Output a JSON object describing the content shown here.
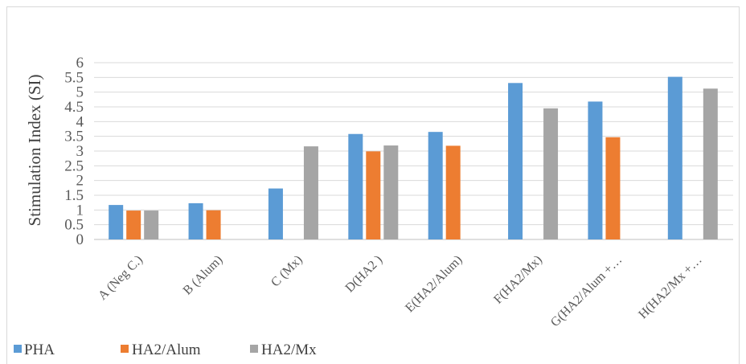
{
  "chart_data": {
    "type": "bar",
    "title": "",
    "xlabel": "",
    "ylabel": "Stimulation Index (SI)",
    "ylim": [
      0,
      6
    ],
    "yticks": [
      "0",
      "0.5",
      "1",
      "1.5",
      "2",
      "2.5",
      "3",
      "3.5",
      "4",
      "4.5",
      "5",
      "5.5",
      "6"
    ],
    "grid": true,
    "legend_position": "bottom-left",
    "categories": [
      "A (Neg C.)",
      "B (Alum)",
      "C (Mx)",
      "D(HA2 )",
      "E(HA2/Alum)",
      "F(HA2/Mx)",
      "G(HA2/Alum +…",
      "H(HA2/Mx +…"
    ],
    "series": [
      {
        "name": "PHA",
        "color": "#5b9bd5",
        "values": [
          1.17,
          1.23,
          1.73,
          3.58,
          3.65,
          5.31,
          4.68,
          5.52
        ]
      },
      {
        "name": "HA2/Alum",
        "color": "#ed7d31",
        "values": [
          0.98,
          0.99,
          null,
          2.99,
          3.18,
          null,
          3.47,
          null
        ]
      },
      {
        "name": "HA2/Mx",
        "color": "#a5a5a5",
        "values": [
          0.98,
          null,
          3.16,
          3.19,
          null,
          4.45,
          null,
          5.12
        ]
      }
    ]
  }
}
